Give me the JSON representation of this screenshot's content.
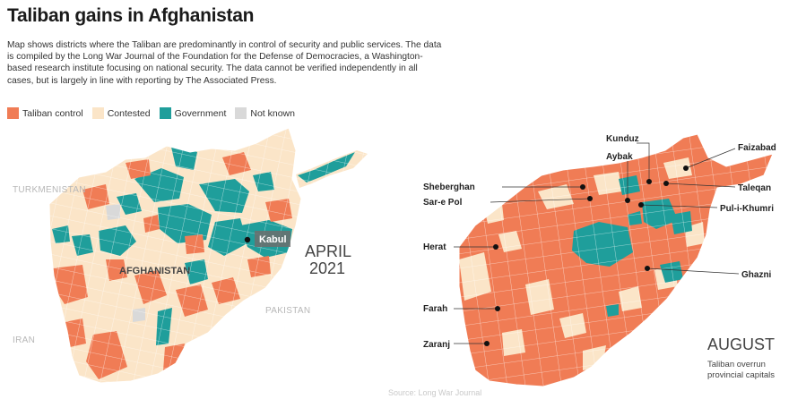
{
  "title": "Taliban gains in Afghanistan",
  "description": "Map shows districts where the Taliban are predominantly in control of security and public services. The data is compiled by the Long War Journal of the Foundation for the Defense of Democracies, a Washington-based research institute focusing on national security. The data cannot be verified independently in all cases, but is largely in line with reporting by The Associated Press.",
  "legend": [
    {
      "label": "Taliban control",
      "color": "#f07c55"
    },
    {
      "label": "Contested",
      "color": "#fbe5c8"
    },
    {
      "label": "Government",
      "color": "#1f9e9b"
    },
    {
      "label": "Not known",
      "color": "#d9d9d9"
    }
  ],
  "left_map": {
    "neighbors": {
      "north": "TURKMENISTAN",
      "west": "IRAN",
      "east": "PAKISTAN"
    },
    "country_label": "AFGHANISTAN",
    "capital_label": "Kabul",
    "date_month": "APRIL",
    "date_year": "2021"
  },
  "right_map": {
    "date_label": "AUGUST",
    "note_line1": "Taliban overrun",
    "note_line2": "provincial capitals",
    "cities": [
      "Kunduz",
      "Faizabad",
      "Aybak",
      "Sheberghan",
      "Taleqan",
      "Sar-e Pol",
      "Pul-i-Khumri",
      "Herat",
      "Ghazni",
      "Farah",
      "Zaranj"
    ]
  },
  "source": "Source: Long War Journal"
}
